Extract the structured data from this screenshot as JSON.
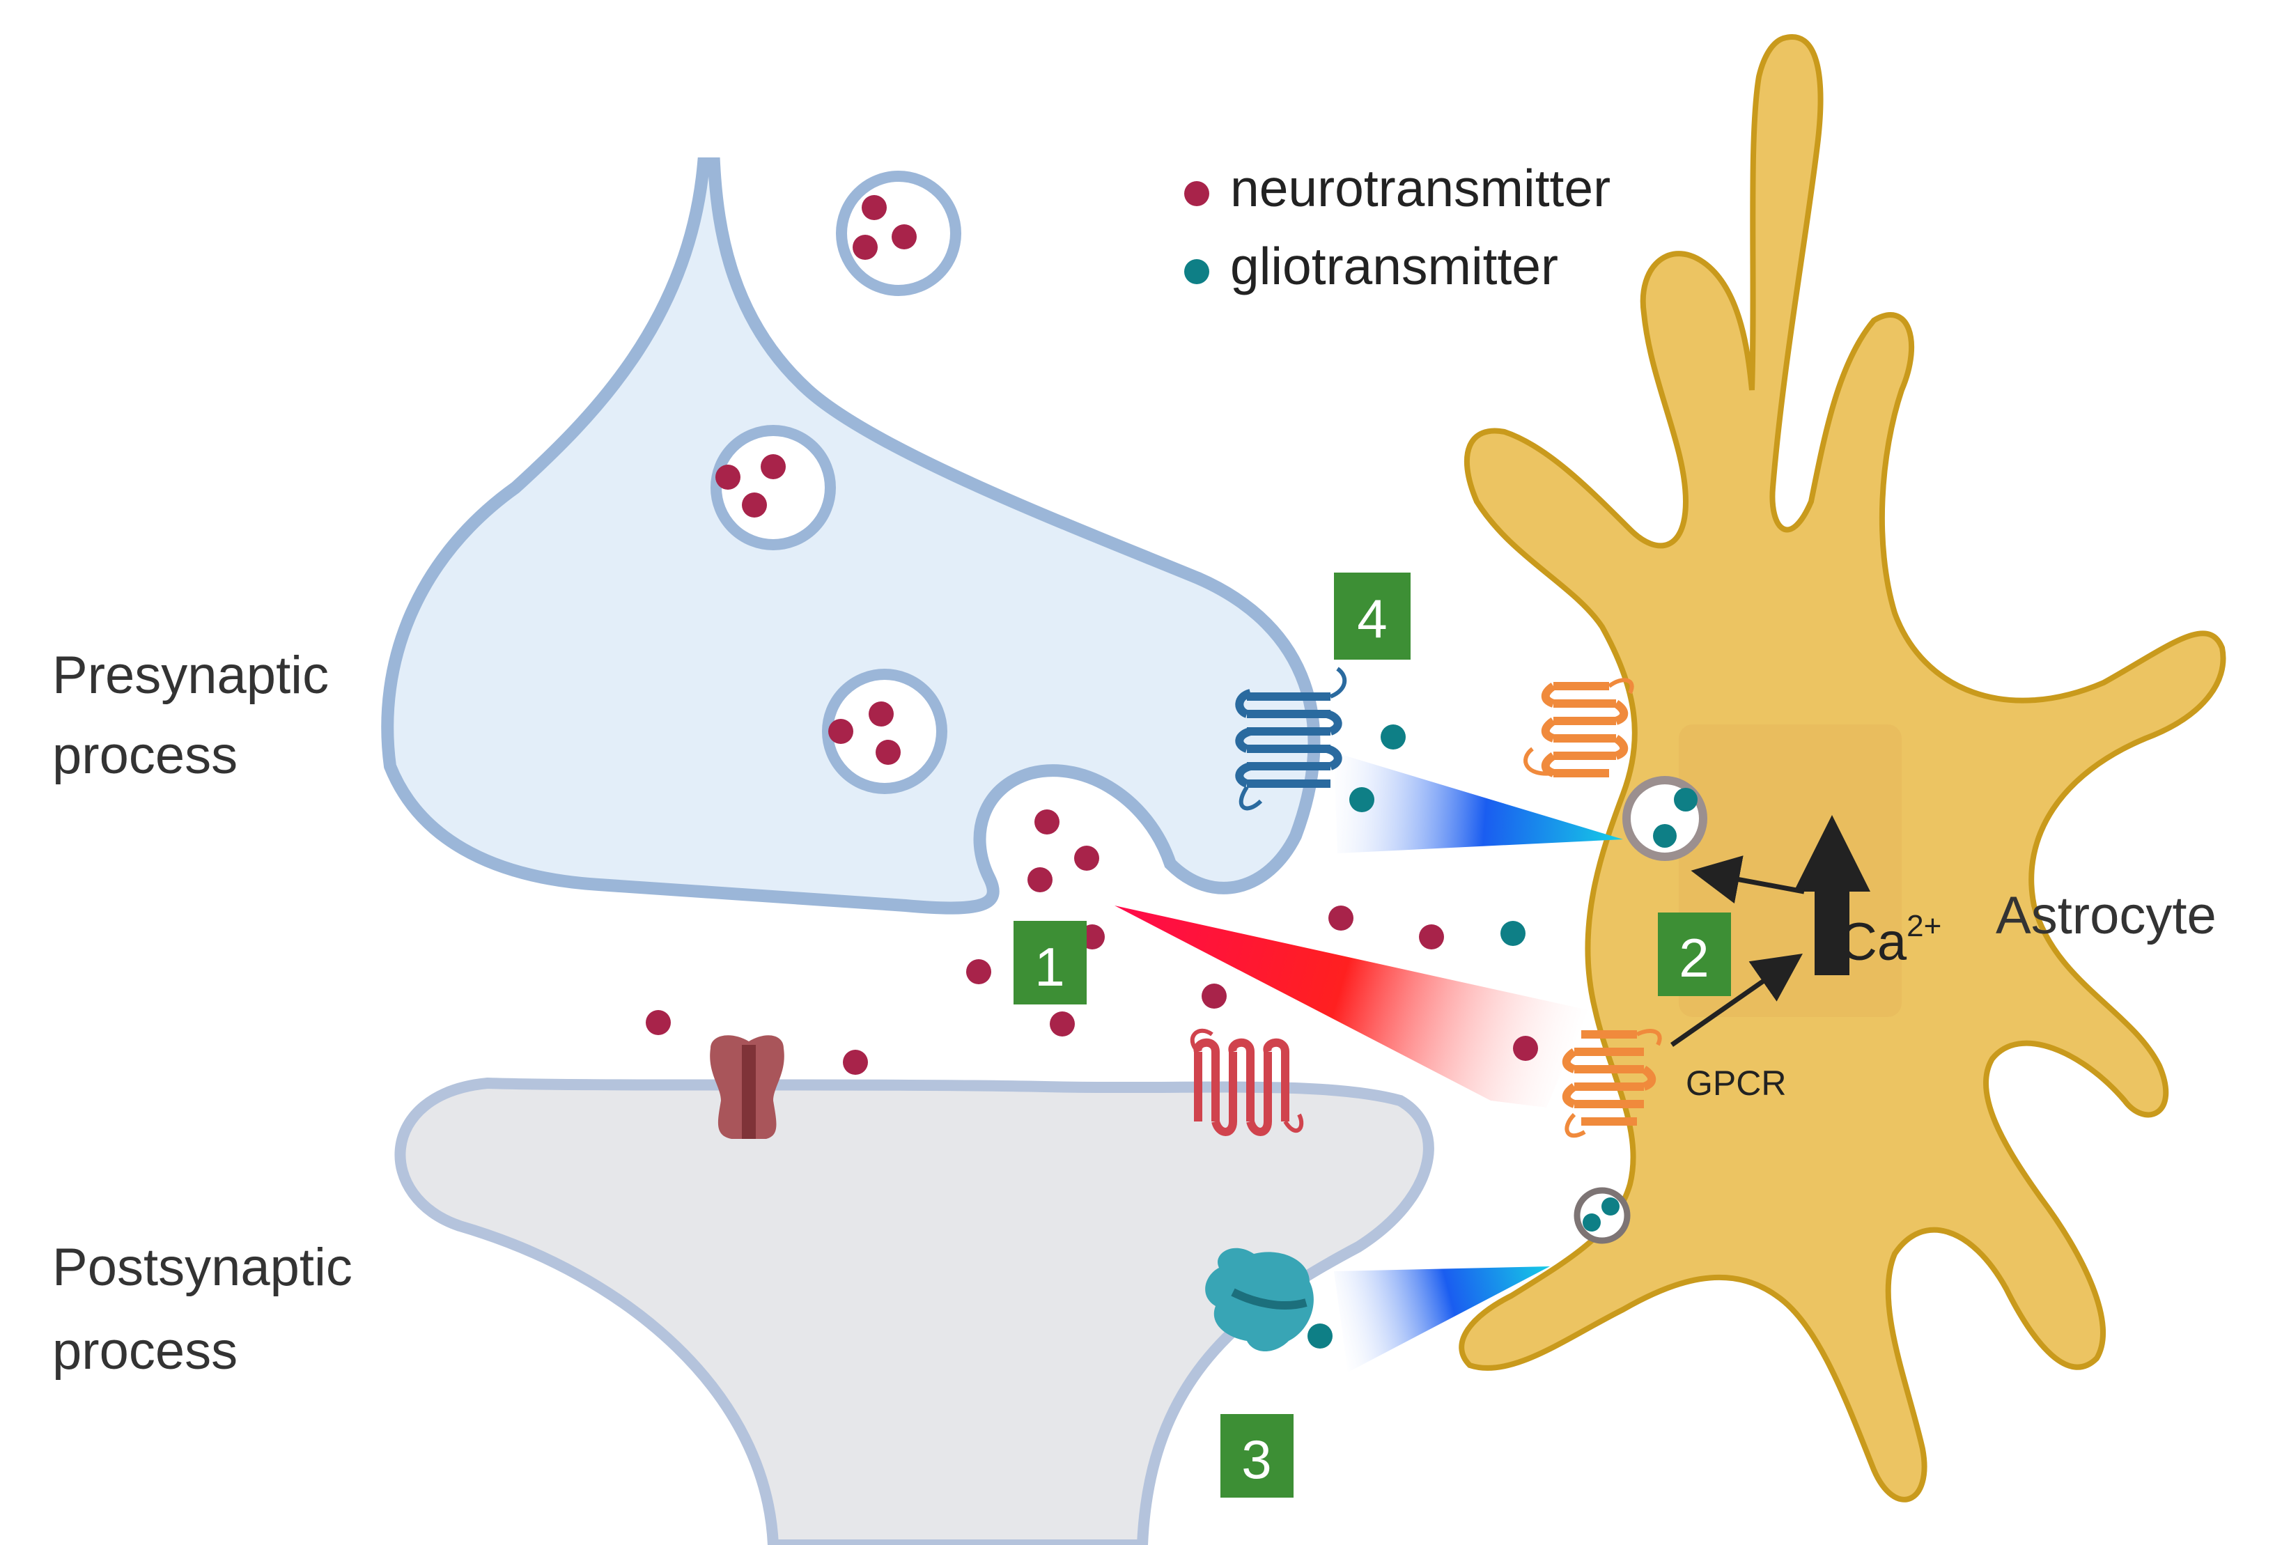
{
  "legend": {
    "neurotransmitter": "neurotransmitter",
    "gliotransmitter": "gliotransmitter"
  },
  "labels": {
    "presynaptic_line1": "Presynaptic",
    "presynaptic_line2": "process",
    "postsynaptic_line1": "Postsynaptic",
    "postsynaptic_line2": "process",
    "astrocyte": "Astrocyte",
    "gpcr": "GPCR",
    "calcium": "Ca",
    "calcium_charge": "2+"
  },
  "steps": [
    "1",
    "2",
    "3",
    "4"
  ],
  "colors": {
    "neurotransmitter": "#a8234a",
    "gliotransmitter": "#0e7f86",
    "presynaptic_fill": "#e3eef9",
    "presynaptic_membrane": "#9bb6d8",
    "postsynaptic_fill": "#e6e7ea",
    "postsynaptic_membrane": "#b4c3dc",
    "astrocyte_fill": "#ecc462",
    "astrocyte_outline": "#c99a1c",
    "step_box": "#3d8f35",
    "red_gradient": "#ff2a55",
    "blue_gradient": "#1d6ff2",
    "cyan_gradient": "#15c9e6"
  }
}
